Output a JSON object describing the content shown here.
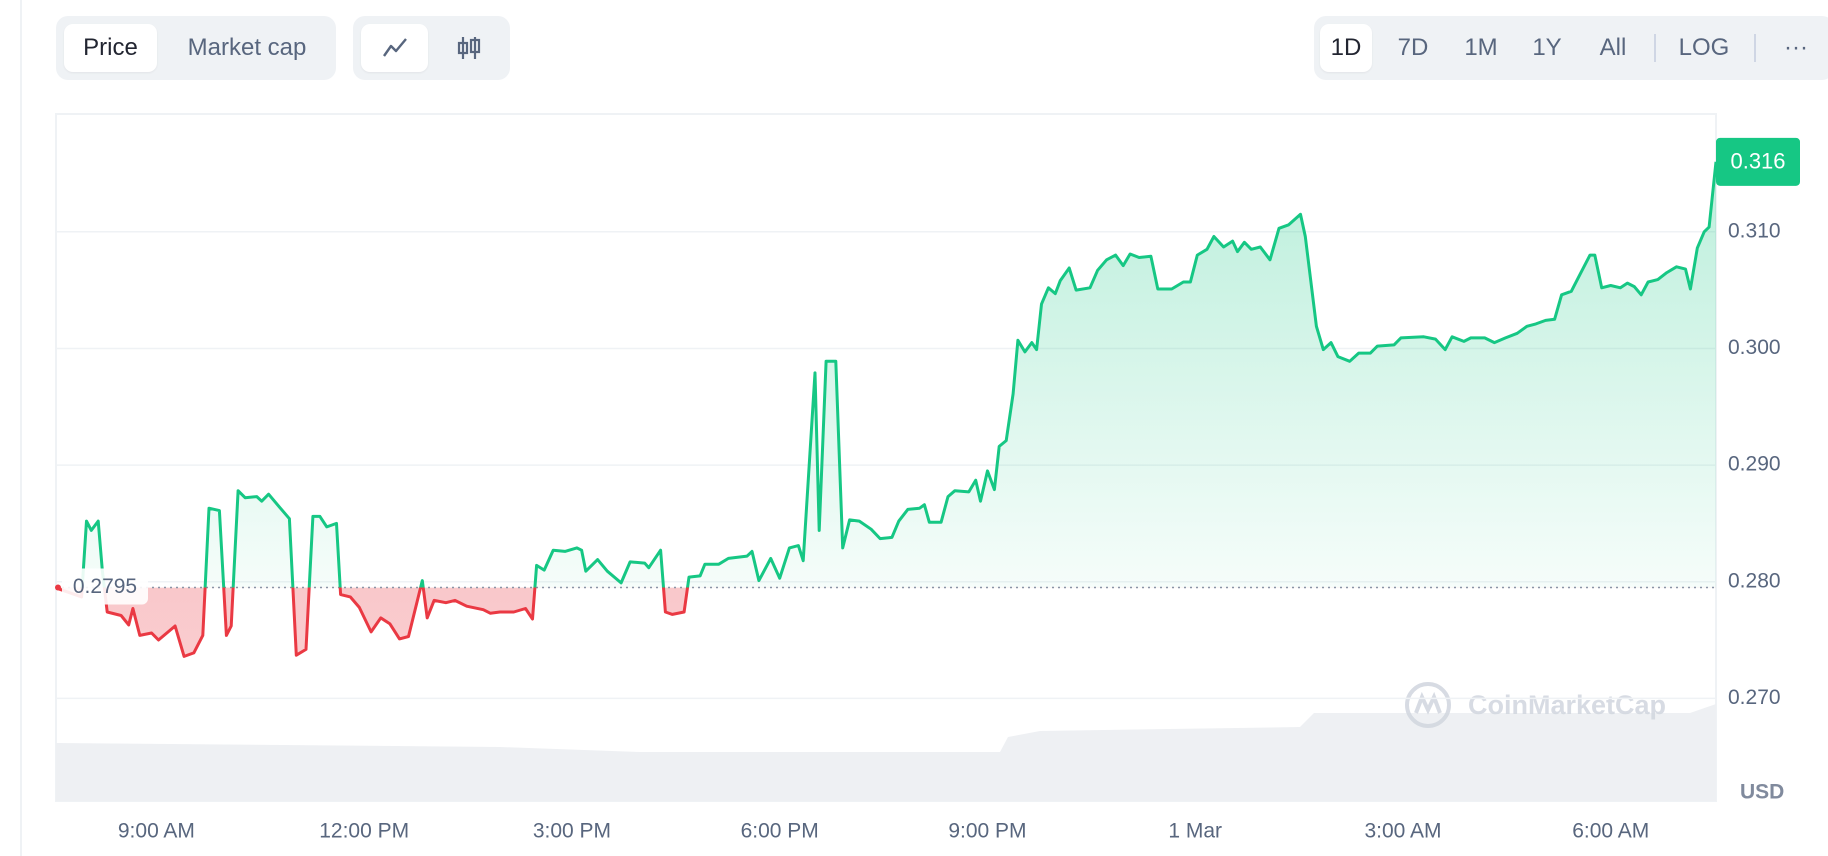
{
  "controls": {
    "kinds": [
      "Price",
      "Market cap"
    ],
    "ranges": [
      "1D",
      "7D",
      "1M",
      "1Y",
      "All",
      "LOG",
      "···"
    ]
  },
  "chart_data": {
    "type": "line",
    "x": [
      7.58,
      7.92,
      7.99,
      8.06,
      8.16,
      8.22,
      8.29,
      8.49,
      8.6,
      8.66,
      8.76,
      8.93,
      9.03,
      9.27,
      9.4,
      9.54,
      9.67,
      9.76,
      9.91,
      10.01,
      10.08,
      10.18,
      10.28,
      10.45,
      10.52,
      10.62,
      10.79,
      10.92,
      11.02,
      11.16,
      11.26,
      11.36,
      11.46,
      11.6,
      11.66,
      11.8,
      11.93,
      12.1,
      12.24,
      12.37,
      12.51,
      12.64,
      12.84,
      12.91,
      13.01,
      13.18,
      13.31,
      13.48,
      13.72,
      13.82,
      13.96,
      14.16,
      14.33,
      14.43,
      14.49,
      14.6,
      14.73,
      14.9,
      15.07,
      15.14,
      15.2,
      15.37,
      15.51,
      15.71,
      15.84,
      16.05,
      16.11,
      16.28,
      16.35,
      16.45,
      16.62,
      16.69,
      16.85,
      16.92,
      17.12,
      17.26,
      17.53,
      17.6,
      17.7,
      17.87,
      18.0,
      18.14,
      18.27,
      18.34,
      18.51,
      18.57,
      18.67,
      18.81,
      18.91,
      19.01,
      19.15,
      19.32,
      19.45,
      19.62,
      19.72,
      19.85,
      20.02,
      20.09,
      20.16,
      20.33,
      20.43,
      20.53,
      20.73,
      20.83,
      20.9,
      21.0,
      21.1,
      21.17,
      21.27,
      21.37,
      21.44,
      21.54,
      21.64,
      21.71,
      21.78,
      21.88,
      21.98,
      22.05,
      22.18,
      22.28,
      22.48,
      22.59,
      22.72,
      22.85,
      22.96,
      23.06,
      23.19,
      23.36,
      23.46,
      23.66,
      23.83,
      23.93,
      24.03,
      24.17,
      24.27,
      24.41,
      24.54,
      24.61,
      24.71,
      24.81,
      24.94,
      25.08,
      25.21,
      25.35,
      25.52,
      25.59,
      25.75,
      25.85,
      25.96,
      26.06,
      26.23,
      26.36,
      26.53,
      26.63,
      26.87,
      26.97,
      27.3,
      27.47,
      27.61,
      27.71,
      27.88,
      27.98,
      28.18,
      28.32,
      28.48,
      28.65,
      28.79,
      28.92,
      29.06,
      29.19,
      29.29,
      29.43,
      29.56,
      29.7,
      29.77,
      29.87,
      30.0,
      30.14,
      30.24,
      30.34,
      30.44,
      30.54,
      30.68,
      30.81,
      30.95,
      31.08,
      31.15,
      31.25,
      31.35,
      31.42,
      31.52
    ],
    "series": [
      {
        "color": "#16c784",
        "below_color": "#ea3943",
        "values": [
          0.2794,
          0.2787,
          0.2852,
          0.2844,
          0.2852,
          0.2809,
          0.2774,
          0.2771,
          0.2763,
          0.2777,
          0.2754,
          0.2756,
          0.275,
          0.2762,
          0.2736,
          0.2739,
          0.2754,
          0.2863,
          0.2861,
          0.2754,
          0.2762,
          0.2878,
          0.2872,
          0.2873,
          0.2869,
          0.2875,
          0.2863,
          0.2854,
          0.2737,
          0.2742,
          0.2856,
          0.2856,
          0.2847,
          0.285,
          0.2789,
          0.2787,
          0.2778,
          0.2757,
          0.2769,
          0.2764,
          0.2751,
          0.2753,
          0.2801,
          0.2769,
          0.2784,
          0.2782,
          0.2784,
          0.2779,
          0.2776,
          0.2773,
          0.2774,
          0.2774,
          0.2777,
          0.2768,
          0.2814,
          0.281,
          0.2827,
          0.2826,
          0.2829,
          0.2827,
          0.2809,
          0.2819,
          0.2809,
          0.2799,
          0.2817,
          0.2816,
          0.2812,
          0.2827,
          0.2774,
          0.2772,
          0.2774,
          0.2804,
          0.2805,
          0.2815,
          0.2815,
          0.282,
          0.2822,
          0.2826,
          0.2801,
          0.282,
          0.2803,
          0.2829,
          0.2831,
          0.2818,
          0.2979,
          0.2844,
          0.2989,
          0.2989,
          0.2829,
          0.2853,
          0.2852,
          0.2845,
          0.2837,
          0.2838,
          0.2852,
          0.2862,
          0.2863,
          0.2866,
          0.2851,
          0.2851,
          0.2873,
          0.2878,
          0.2877,
          0.2887,
          0.2869,
          0.2895,
          0.2879,
          0.2916,
          0.2921,
          0.2961,
          0.3007,
          0.2997,
          0.3005,
          0.2999,
          0.3038,
          0.3052,
          0.3047,
          0.3058,
          0.3069,
          0.305,
          0.3052,
          0.3067,
          0.3076,
          0.308,
          0.3071,
          0.3081,
          0.3078,
          0.3079,
          0.3051,
          0.3051,
          0.3057,
          0.3057,
          0.308,
          0.3085,
          0.3096,
          0.3087,
          0.3092,
          0.3083,
          0.3091,
          0.3085,
          0.3087,
          0.3076,
          0.3103,
          0.3106,
          0.3115,
          0.3096,
          0.3019,
          0.2999,
          0.3005,
          0.2993,
          0.2989,
          0.2996,
          0.2996,
          0.3002,
          0.3003,
          0.3009,
          0.301,
          0.3008,
          0.2999,
          0.301,
          0.3006,
          0.3009,
          0.3009,
          0.3005,
          0.3009,
          0.3013,
          0.3019,
          0.3021,
          0.3024,
          0.3025,
          0.3046,
          0.3049,
          0.3064,
          0.308,
          0.308,
          0.3052,
          0.3054,
          0.3052,
          0.3056,
          0.3053,
          0.3046,
          0.3057,
          0.3059,
          0.3065,
          0.307,
          0.3068,
          0.3051,
          0.3086,
          0.31,
          0.3104,
          0.316
        ]
      }
    ],
    "baseline": 0.2795,
    "xlim": [
      7.55,
      31.52
    ],
    "xticks": [
      {
        "value": 9,
        "label": "9:00 AM"
      },
      {
        "value": 12,
        "label": "12:00 PM"
      },
      {
        "value": 15,
        "label": "3:00 PM"
      },
      {
        "value": 18,
        "label": "6:00 PM"
      },
      {
        "value": 21,
        "label": "9:00 PM"
      },
      {
        "value": 24,
        "label": "1 Mar"
      },
      {
        "value": 27,
        "label": "3:00 AM"
      },
      {
        "value": 30,
        "label": "6:00 AM"
      }
    ],
    "ylim": [
      0.2612,
      0.3201
    ],
    "yticks": [
      {
        "value": 0.27,
        "label": "0.270"
      },
      {
        "value": 0.28,
        "label": "0.280"
      },
      {
        "value": 0.29,
        "label": "0.290"
      },
      {
        "value": 0.3,
        "label": "0.300"
      },
      {
        "value": 0.31,
        "label": "0.310"
      }
    ],
    "y_unit": "USD",
    "watermark": "CoinMarketCap",
    "grid": true
  }
}
